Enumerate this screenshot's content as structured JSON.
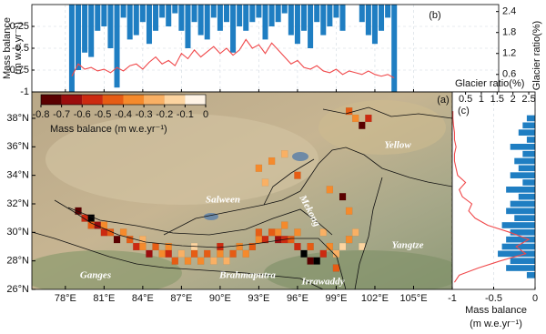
{
  "chart_data": [
    {
      "type": "bar",
      "label": "(b)",
      "ylabel": [
        "Mass balance",
        "(m w.e.yr⁻¹)"
      ],
      "y2label": "Glacier ratio(%)",
      "x": [
        78.5,
        79,
        79.5,
        80,
        80.5,
        81,
        81.5,
        82,
        82.5,
        83,
        83.5,
        84,
        84.5,
        85,
        85.5,
        86,
        86.5,
        87,
        87.5,
        88,
        88.5,
        89,
        89.5,
        90,
        90.5,
        91,
        91.5,
        92,
        92.5,
        93,
        93.5,
        94,
        94.5,
        95,
        95.5,
        96,
        96.5,
        97,
        97.5,
        98,
        98.5,
        99,
        99.5,
        100,
        100.5,
        101,
        101.5,
        102,
        102.5,
        103,
        103.5
      ],
      "series": [
        {
          "color": "#1f7ec2",
          "values": [
            -1,
            -0.75,
            -0.55,
            -0.6,
            -0.3,
            -0.25,
            -0.5,
            -0.95,
            -0.15,
            -0.4,
            -0.35,
            -0.2,
            -0.45,
            -0.3,
            -0.15,
            -0.25,
            -0.1,
            -0.3,
            -0.5,
            -0.2,
            -0.35,
            -0.4,
            -0.15,
            -0.3,
            -0.2,
            -0.55,
            -0.25,
            -0.3,
            -0.2,
            -0.15,
            -0.4,
            -0.25,
            -0.2,
            -0.1,
            -0.35,
            -0.45,
            -0.3,
            -0.5,
            -0.2,
            -0.35,
            -0.25,
            -0.15,
            -0.3,
            null,
            null,
            -0.2,
            -0.35,
            -0.45,
            -0.3,
            -0.15,
            -1
          ]
        },
        {
          "color": "#f0484a",
          "axis": "y2",
          "values": [
            0.55,
            0.9,
            0.75,
            0.8,
            0.7,
            0.75,
            0.65,
            0.8,
            0.7,
            0.85,
            0.9,
            0.75,
            0.95,
            1.1,
            0.9,
            1.0,
            0.85,
            1.2,
            1.05,
            1.3,
            1.1,
            1.25,
            1.4,
            1.2,
            1.35,
            1.15,
            1.3,
            1.6,
            1.35,
            1.45,
            1.2,
            1.5,
            1.3,
            1.1,
            0.9,
            1.0,
            0.8,
            0.75,
            0.85,
            0.7,
            0.65,
            0.75,
            0.6,
            0.7,
            0.65,
            0.6,
            0.7,
            0.6,
            0.55,
            0.6,
            0.5
          ]
        }
      ],
      "xlim": [
        75.4,
        111.6
      ],
      "xticks": [
        78,
        81,
        84,
        87,
        90,
        93,
        96,
        99,
        102,
        105
      ],
      "ylim": [
        -1,
        0
      ],
      "yticks": [
        -1,
        -0.75,
        -0.5,
        -0.25
      ],
      "y2lim": [
        0.1,
        2.6
      ],
      "y2ticks": [
        0.6,
        1.2,
        1.8,
        2.4
      ],
      "grid": true
    },
    {
      "type": "heatmap",
      "label": "(a)",
      "colorbar_label": "Mass balance (m w.e.yr⁻¹)",
      "colormap": [
        "#000000",
        "#5a0000",
        "#9b0d0d",
        "#cc2a10",
        "#e65c14",
        "#f58a2c",
        "#f9b064",
        "#fcd4a0",
        "#fff4e6"
      ],
      "clim": [
        -0.8,
        0
      ],
      "cticks": [
        -0.8,
        -0.7,
        -0.6,
        -0.5,
        -0.4,
        -0.3,
        -0.2,
        -0.1,
        0
      ],
      "rivers": [
        "Yellow",
        "Salween",
        "Mekong",
        "Yangtze",
        "Ganges",
        "Brahmaputra",
        "Irrawaddy"
      ],
      "xlim": [
        75.4,
        108
      ],
      "ylim": [
        26,
        39.85
      ],
      "xticks": [
        {
          "value": 78,
          "label": "78°E"
        },
        {
          "value": 81,
          "label": "81°E"
        },
        {
          "value": 84,
          "label": "84°E"
        },
        {
          "value": 87,
          "label": "87°E"
        },
        {
          "value": 90,
          "label": "90°E"
        },
        {
          "value": 93,
          "label": "93°E"
        },
        {
          "value": 96,
          "label": "96°E"
        },
        {
          "value": 99,
          "label": "99°E"
        },
        {
          "value": 102,
          "label": "102°E"
        },
        {
          "value": 105,
          "label": "105°E"
        }
      ],
      "yticks": [
        {
          "value": 26,
          "label": "26°N"
        },
        {
          "value": 28,
          "label": "28°N"
        },
        {
          "value": 30,
          "label": "30°N"
        },
        {
          "value": 32,
          "label": "32°N"
        },
        {
          "value": 34,
          "label": "34°N"
        },
        {
          "value": 36,
          "label": "36°N"
        },
        {
          "value": 38,
          "label": "38°N"
        }
      ],
      "x": [
        79,
        79.5,
        80,
        80,
        80.5,
        81,
        81,
        81.5,
        82,
        82.5,
        83,
        83.5,
        84,
        84.5,
        85,
        85.5,
        86,
        86.5,
        87,
        87.5,
        88,
        88.5,
        89,
        89.5,
        90,
        90.5,
        91,
        91.5,
        92,
        92.5,
        93,
        93,
        93.5,
        94,
        94.5,
        94.5,
        95,
        95,
        95.5,
        96,
        96,
        96.5,
        97,
        97,
        97.5,
        98,
        98,
        98.5,
        99,
        99,
        99.5,
        100,
        100.5,
        101,
        100,
        99.5,
        98.5,
        93,
        94,
        95,
        93.5,
        96,
        100.5,
        101,
        101.5,
        100,
        86,
        90,
        84,
        88
      ],
      "y": [
        31.5,
        31,
        31,
        30.5,
        30.5,
        30.5,
        30,
        30,
        29.5,
        30,
        29.5,
        29,
        29,
        28.5,
        29,
        28.5,
        28.5,
        28,
        28.5,
        28,
        28.5,
        28,
        28.5,
        28,
        28.5,
        28,
        28.5,
        29,
        28.5,
        29,
        29.5,
        30,
        29.5,
        30,
        29.5,
        30,
        29.5,
        30.5,
        29.5,
        29,
        30,
        28.5,
        28,
        29,
        28,
        28.5,
        30,
        29,
        27.5,
        28.5,
        29,
        29.5,
        30,
        29,
        31.5,
        32.5,
        33,
        34.5,
        35,
        35.5,
        33.5,
        34,
        38,
        37.5,
        38,
        38.5,
        29,
        29,
        29.5,
        29
      ],
      "values": [
        -0.7,
        -0.5,
        -0.8,
        -0.4,
        -0.6,
        -0.3,
        -0.5,
        -0.4,
        -0.7,
        -0.3,
        -0.4,
        -0.5,
        -0.3,
        -0.6,
        -0.4,
        -0.3,
        -0.5,
        -0.4,
        -0.2,
        -0.35,
        -0.45,
        -0.3,
        -0.4,
        -0.25,
        -0.35,
        -0.2,
        -0.45,
        -0.3,
        -0.35,
        -0.4,
        -0.3,
        -0.45,
        -0.55,
        -0.4,
        -0.6,
        -0.35,
        -0.5,
        -0.3,
        -0.45,
        -0.55,
        -0.35,
        -0.8,
        -0.7,
        -0.4,
        -0.8,
        -0.5,
        -0.2,
        -0.3,
        -0.4,
        -0.2,
        -0.15,
        -0.3,
        -0.25,
        -0.1,
        -0.35,
        -0.7,
        -0.3,
        -0.35,
        -0.3,
        -0.25,
        -0.2,
        -0.4,
        -0.35,
        -0.75,
        -0.5,
        -0.4,
        -0.3,
        -0.5,
        -0.2,
        -0.1
      ]
    },
    {
      "type": "barh",
      "label": "(c)",
      "xlabel": [
        "Mass balance",
        "(m w.e.yr⁻¹)"
      ],
      "x2label": "Glacier ratio(%)",
      "y": [
        26.5,
        27,
        27.5,
        28,
        28.5,
        29,
        29.5,
        30,
        30.5,
        31,
        31.5,
        32,
        32.5,
        33,
        33.5,
        34,
        34.5,
        35,
        35.5,
        36,
        36.5,
        37,
        37.5,
        38,
        38.5
      ],
      "series": [
        {
          "color": "#1f7ec2",
          "values": [
            null,
            -0.1,
            -0.35,
            -0.3,
            -0.45,
            -0.4,
            -0.35,
            -0.3,
            -0.4,
            -0.25,
            -0.35,
            -0.3,
            -0.2,
            -0.35,
            -0.15,
            -0.3,
            -0.2,
            -0.25,
            -0.15,
            -0.3,
            -0.1,
            -0.2,
            -0.15,
            -0.1,
            null
          ]
        },
        {
          "color": "#f0484a",
          "axis": "x2",
          "values": [
            0.15,
            0.3,
            0.9,
            1.6,
            2.4,
            2.1,
            2.5,
            1.9,
            1.2,
            0.8,
            0.6,
            0.7,
            0.4,
            0.3,
            0.5,
            0.25,
            0.2,
            0.15,
            0.15,
            0.2,
            0.15,
            0.15,
            0.12,
            0.1,
            0.1
          ]
        }
      ],
      "xlim": [
        -1,
        0
      ],
      "xticks": [
        -1,
        -0.5,
        0
      ],
      "x2lim": [
        0.08,
        2.7
      ],
      "x2ticks": [
        0.5,
        1,
        1.5,
        2,
        2.5
      ],
      "ylim": [
        26,
        39.85
      ],
      "grid": true
    }
  ]
}
